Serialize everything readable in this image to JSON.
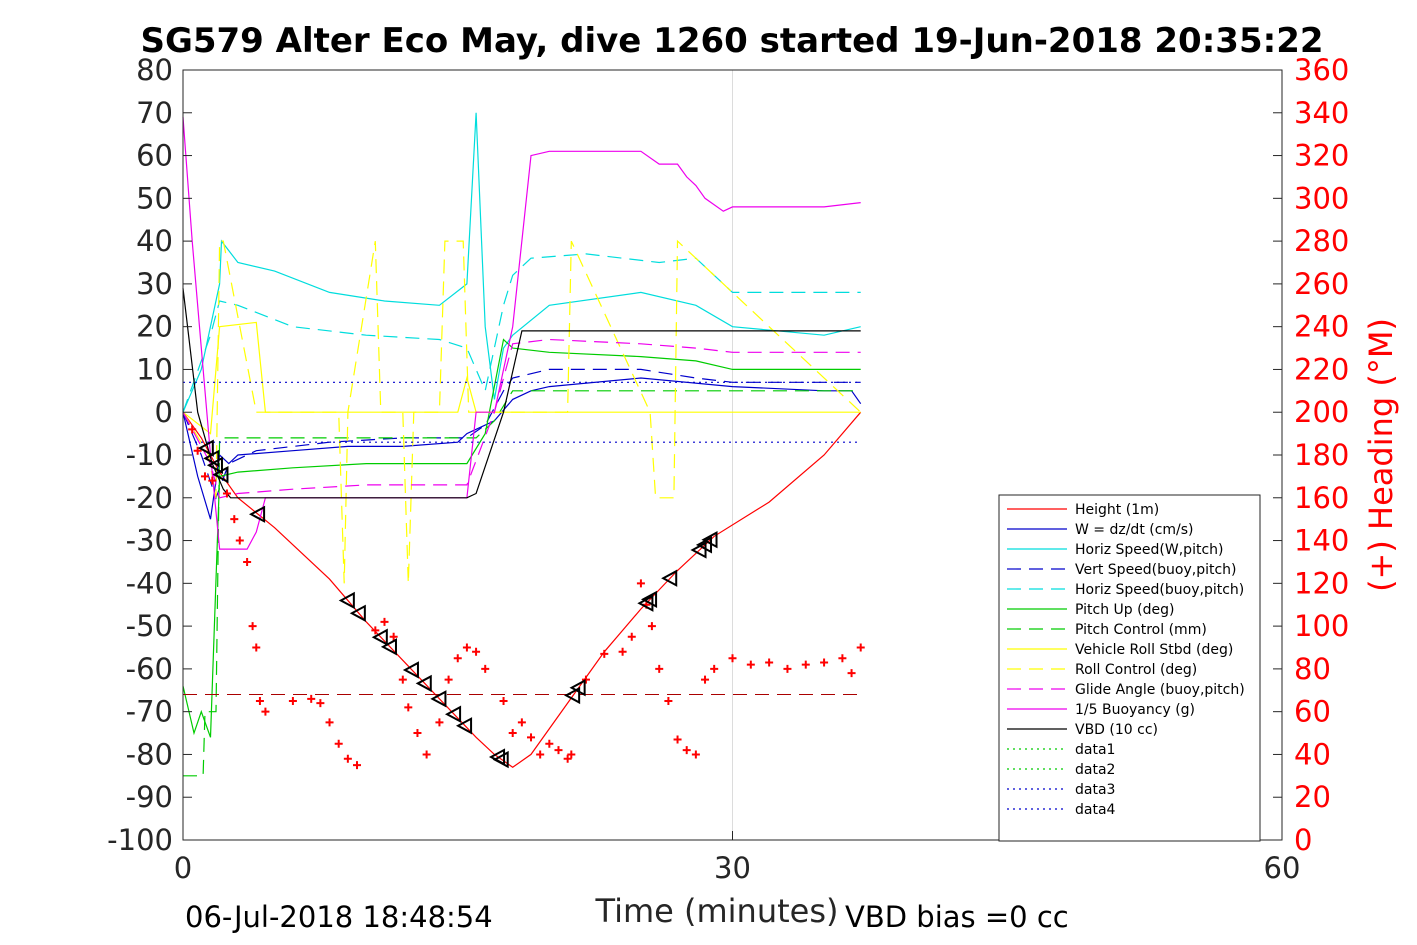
{
  "chart_data": {
    "type": "line",
    "title": "SG579 Alter Eco May, dive 1260 started 19-Jun-2018 20:35:22",
    "xlabel": "Time (minutes)",
    "ylabel": "",
    "y2label": "(+) Heading (°M)",
    "xlim": [
      0,
      60
    ],
    "ylim": [
      -100,
      80
    ],
    "y2lim": [
      0,
      360
    ],
    "xticks": [
      0,
      30,
      60
    ],
    "yticks": [
      80,
      70,
      60,
      50,
      40,
      30,
      20,
      10,
      0,
      -10,
      -20,
      -30,
      -40,
      -50,
      -60,
      -70,
      -80,
      -90,
      -100
    ],
    "y2ticks": [
      360,
      340,
      320,
      300,
      280,
      260,
      240,
      220,
      200,
      180,
      160,
      140,
      120,
      100,
      80,
      60,
      40,
      20,
      0
    ],
    "grid": "x=30 only",
    "legend_position": "bottom-right",
    "footer_left": "06-Jul-2018 18:48:54",
    "footer_right": "VBD bias =0 cc",
    "series": [
      {
        "name": "Height (1m)",
        "color": "#ff0000",
        "style": "solid",
        "x": [
          0,
          1.0,
          2.0,
          3.0,
          5.0,
          8.0,
          10.0,
          12.0,
          14.0,
          16.0,
          17.0,
          18.0,
          19.0,
          21.0,
          23.0,
          25.0,
          27.0,
          29.0,
          32.0,
          35.0,
          37.0
        ],
        "y": [
          0,
          -6,
          -14,
          -20,
          -27,
          -39,
          -49,
          -58,
          -67,
          -76,
          -80,
          -83,
          -80,
          -68,
          -56,
          -46,
          -37,
          -29,
          -21,
          -10,
          0
        ]
      },
      {
        "name": "W = dz/dt (cm/s)",
        "color": "#0000cc",
        "style": "solid",
        "x": [
          0,
          0.8,
          1.5,
          2.0,
          2.5,
          3,
          6,
          9,
          12,
          15,
          15.5,
          16,
          17,
          18,
          19,
          20,
          25,
          30,
          35,
          36.5,
          37
        ],
        "y": [
          0,
          -15,
          -25,
          -10,
          -12,
          -10,
          -9,
          -8,
          -8,
          -7,
          -5,
          -4,
          -2,
          3,
          5,
          6,
          8,
          6,
          5,
          5,
          2
        ]
      },
      {
        "name": "Horiz Speed(W,pitch)",
        "color": "#00dddd",
        "style": "solid",
        "x": [
          0,
          1,
          2,
          2.1,
          3,
          5,
          8,
          11,
          14,
          15.5,
          16,
          16.5,
          17,
          17.5,
          18,
          20,
          25,
          28,
          30,
          35,
          37
        ],
        "y": [
          0,
          10,
          30,
          40,
          35,
          33,
          28,
          26,
          25,
          30,
          70,
          20,
          3,
          15,
          18,
          25,
          28,
          25,
          20,
          18,
          20
        ]
      },
      {
        "name": "Vert Speed(buoy,pitch)",
        "color": "#0000cc",
        "style": "dashed",
        "x": [
          0,
          1,
          1.8,
          2.5,
          4,
          8,
          12,
          15.5,
          16.5,
          17.5,
          18,
          20,
          25,
          28,
          30,
          37
        ],
        "y": [
          0,
          -10,
          -20,
          -12,
          -9,
          -7,
          -6,
          -6,
          -3,
          5,
          8,
          10,
          10,
          8,
          7,
          7
        ]
      },
      {
        "name": "Horiz Speed(buoy,pitch)",
        "color": "#00dddd",
        "style": "dashed",
        "x": [
          0,
          1.5,
          2,
          3,
          6,
          10,
          14,
          15.5,
          16.5,
          17.5,
          18,
          19,
          22,
          26,
          28,
          30,
          37
        ],
        "y": [
          0,
          18,
          26,
          25,
          20,
          18,
          17,
          15,
          5,
          25,
          32,
          36,
          37,
          35,
          36,
          28,
          28
        ]
      },
      {
        "name": "Pitch Up (deg)",
        "color": "#00cc00",
        "style": "solid",
        "x": [
          0,
          0.6,
          1.0,
          1.5,
          2,
          3,
          6,
          10,
          14,
          15.5,
          16.5,
          17.5,
          18,
          20,
          25,
          28,
          30,
          37
        ],
        "y": [
          -64,
          -75,
          -70,
          -76,
          -15,
          -14,
          -13,
          -12,
          -12,
          -12,
          -5,
          17,
          15,
          14,
          13,
          12,
          10,
          10
        ]
      },
      {
        "name": "Pitch Control (mm)",
        "color": "#00cc00",
        "style": "dashed",
        "x": [
          0,
          1.1,
          1.2,
          1.8,
          2.0,
          16.0,
          17.0,
          18.0,
          37
        ],
        "y": [
          -85,
          -85,
          -70,
          -70,
          -6,
          -6,
          -2,
          5,
          5
        ]
      },
      {
        "name": "Vehicle Roll Stbd (deg)",
        "color": "#ffff00",
        "style": "solid",
        "x": [
          0,
          1.5,
          2,
          4,
          4.5,
          8,
          10,
          12,
          14,
          15,
          15.5,
          16,
          20,
          22,
          25,
          30,
          37
        ],
        "y": [
          0,
          -5,
          20,
          21,
          0,
          0,
          0,
          0,
          0,
          0,
          8,
          0,
          0,
          0,
          0,
          0,
          0
        ]
      },
      {
        "name": "Roll Control (deg)",
        "color": "#ffff00",
        "style": "dashed",
        "x": [
          0,
          1.4,
          1.8,
          2.0,
          2.2,
          4.0,
          4.2,
          8.5,
          8.8,
          9.0,
          10.5,
          10.8,
          12.0,
          12.3,
          12.6,
          14.0,
          14.3,
          15.3,
          15.6,
          21.0,
          21.2,
          25.5,
          25.8,
          26.8,
          27.0,
          37
        ],
        "y": [
          0,
          -10,
          -20,
          40,
          40,
          0,
          0,
          0,
          -40,
          0,
          40,
          0,
          0,
          -40,
          0,
          0,
          40,
          40,
          0,
          0,
          40,
          0,
          -20,
          -20,
          40,
          0
        ]
      },
      {
        "name": "Glide Angle (buoy,pitch)",
        "color": "#ee00ee",
        "style": "dashed",
        "x": [
          0,
          1.5,
          2,
          3,
          6,
          10,
          14,
          15.5,
          17,
          18,
          20,
          25,
          28,
          30,
          37
        ],
        "y": [
          0,
          -12,
          -20,
          -19,
          -18,
          -17,
          -17,
          -17,
          0,
          16,
          17,
          16,
          15,
          14,
          14
        ]
      },
      {
        "name": "1/5 Buoyancy (g)",
        "color": "#ee00ee",
        "style": "solid",
        "x": [
          0,
          0.5,
          1.0,
          1.5,
          2.0,
          3.5,
          4.0,
          4.5,
          8,
          12,
          15.5,
          16,
          17,
          18,
          19,
          20,
          25,
          26,
          27,
          27.5,
          28,
          28.5,
          29.5,
          30,
          35,
          37
        ],
        "y": [
          69,
          40,
          15,
          -10,
          -32,
          -32,
          -28,
          -20,
          -20,
          -20,
          -20,
          0,
          0,
          20,
          60,
          61,
          61,
          58,
          58,
          55,
          53,
          50,
          47,
          48,
          48,
          49
        ]
      },
      {
        "name": "VBD (10 cc)",
        "color": "#000000",
        "style": "solid",
        "x": [
          0,
          0.8,
          1.6,
          2.2,
          2.6,
          15.5,
          16,
          17.5,
          18.5,
          37
        ],
        "y": [
          29,
          0,
          -12,
          -18,
          -20,
          -20,
          -19,
          0,
          19,
          19
        ]
      },
      {
        "name": "data1",
        "color": "#00cc00",
        "style": "dotted",
        "x": [],
        "y": []
      },
      {
        "name": "data2",
        "color": "#00cc00",
        "style": "dotted",
        "x": [],
        "y": []
      },
      {
        "name": "data3",
        "color": "#0000cc",
        "style": "dotted",
        "x": [
          0,
          37
        ],
        "y": [
          7,
          7
        ]
      },
      {
        "name": "data4",
        "color": "#0000cc",
        "style": "dotted",
        "x": [
          0,
          37
        ],
        "y": [
          -7,
          -7
        ]
      }
    ],
    "heading_marks": {
      "color": "#ff0000",
      "axis": "right",
      "x": [
        0.5,
        0.8,
        1.2,
        1.6,
        2.4,
        2.8,
        3.1,
        3.5,
        3.8,
        4.0,
        4.2,
        4.5,
        6,
        7,
        7.5,
        8,
        8.5,
        9,
        9.5,
        10.5,
        11,
        11.5,
        12,
        12.3,
        12.8,
        13.3,
        14,
        14.5,
        15,
        15.5,
        16,
        16.5,
        17.5,
        18,
        18.5,
        19,
        19.5,
        20,
        20.5,
        21,
        21.2,
        22,
        23,
        24,
        24.5,
        25,
        25.3,
        25.6,
        26,
        26.5,
        27,
        27.5,
        28,
        28.5,
        29,
        30,
        31,
        32,
        33,
        34,
        35,
        36,
        36.5,
        37
      ],
      "y": [
        192,
        182,
        170,
        168,
        162,
        150,
        140,
        130,
        100,
        90,
        65,
        60,
        65,
        66,
        64,
        55,
        45,
        38,
        35,
        98,
        102,
        95,
        75,
        62,
        50,
        40,
        55,
        75,
        85,
        90,
        88,
        80,
        65,
        50,
        55,
        48,
        40,
        45,
        42,
        38,
        40,
        75,
        87,
        88,
        95,
        120,
        110,
        100,
        80,
        65,
        47,
        42,
        40,
        75,
        80,
        85,
        82,
        83,
        80,
        82,
        83,
        85,
        78,
        90
      ]
    },
    "heading_dashed_level": 68,
    "triangles_x": [
      1.3,
      1.6,
      1.8,
      2.1,
      4.1,
      9.0,
      9.6,
      10.8,
      11.3,
      12.5,
      13.2,
      14.0,
      14.8,
      15.4,
      17.2,
      17.4,
      21.3,
      21.6,
      25.3,
      25.5,
      26.6,
      28.2,
      28.5,
      28.8
    ]
  }
}
